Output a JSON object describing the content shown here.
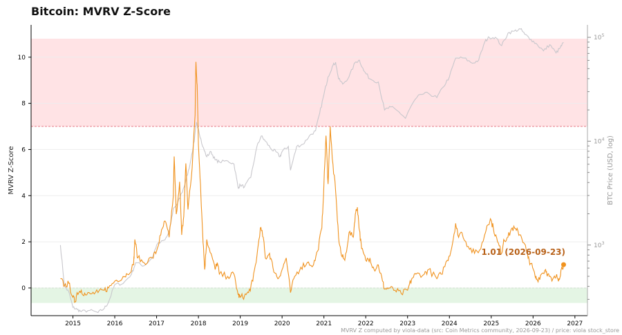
{
  "title": "Bitcoin: MVRV Z-Score",
  "footer": "MVRV Z computed by viola-data (src: Coin Metrics community, 2026-09-23) / price: viola stock_store",
  "colors": {
    "zscore": "#f0921e",
    "price": "#c8c7cc",
    "overheat_zone": "#ffe3e5",
    "overheat_line": "#e47a85",
    "undervalued_zone": "#e4f5e4",
    "zero_line": "#5cbf5c",
    "annotation": "#b8621a",
    "grid": "#eeeeee"
  },
  "chart_data": {
    "type": "line",
    "title": "Bitcoin: MVRV Z-Score",
    "ylabel": "MVRV Z-Score",
    "y2label": "BTC Price (USD, log)",
    "ylim": [
      -1.2,
      11.4
    ],
    "y2lim_log10": [
      2.32,
      5.12
    ],
    "xlim": [
      2014.0,
      2027.3
    ],
    "x_ticks": [
      "2015",
      "2016",
      "2017",
      "2018",
      "2019",
      "2020",
      "2021",
      "2022",
      "2023",
      "2024",
      "2025",
      "2026",
      "2027"
    ],
    "x_tick_values": [
      2015,
      2016,
      2017,
      2018,
      2019,
      2020,
      2021,
      2022,
      2023,
      2024,
      2025,
      2026,
      2027
    ],
    "y_ticks": [
      0,
      2,
      4,
      6,
      8,
      10
    ],
    "y2_ticks": [
      {
        "label": "10",
        "sup": "3",
        "value": 1000
      },
      {
        "label": "10",
        "sup": "4",
        "value": 10000
      },
      {
        "label": "10",
        "sup": "5",
        "value": 100000
      }
    ],
    "grid": true,
    "bands": [
      {
        "name": "overheated",
        "from": 7,
        "to": 10.8
      },
      {
        "name": "undervalued",
        "from": -0.65,
        "to": 0
      }
    ],
    "thresholds": [
      7,
      0
    ],
    "annotation": {
      "text": "1.01  (2026-09-23)",
      "x": 2026.73,
      "y": 1.01
    },
    "series": [
      {
        "key": "zscore",
        "axis": "left",
        "points": [
          [
            2014.7,
            0.4
          ],
          [
            2014.8,
            0.1
          ],
          [
            2014.9,
            0.2
          ],
          [
            2015.0,
            -0.4
          ],
          [
            2015.05,
            -0.6
          ],
          [
            2015.1,
            -0.2
          ],
          [
            2015.2,
            -0.1
          ],
          [
            2015.3,
            -0.3
          ],
          [
            2015.45,
            -0.25
          ],
          [
            2015.6,
            -0.2
          ],
          [
            2015.75,
            -0.1
          ],
          [
            2015.85,
            0.0
          ],
          [
            2016.0,
            0.3
          ],
          [
            2016.2,
            0.5
          ],
          [
            2016.3,
            0.6
          ],
          [
            2016.45,
            1.0
          ],
          [
            2016.48,
            2.1
          ],
          [
            2016.55,
            1.3
          ],
          [
            2016.7,
            1.1
          ],
          [
            2016.9,
            1.3
          ],
          [
            2017.0,
            1.6
          ],
          [
            2017.1,
            2.3
          ],
          [
            2017.2,
            2.9
          ],
          [
            2017.3,
            2.2
          ],
          [
            2017.4,
            4.0
          ],
          [
            2017.42,
            5.7
          ],
          [
            2017.47,
            3.2
          ],
          [
            2017.55,
            4.6
          ],
          [
            2017.6,
            2.3
          ],
          [
            2017.65,
            3.1
          ],
          [
            2017.7,
            5.4
          ],
          [
            2017.75,
            3.4
          ],
          [
            2017.85,
            5.2
          ],
          [
            2017.92,
            7.5
          ],
          [
            2017.94,
            9.8
          ],
          [
            2017.97,
            8.8
          ],
          [
            2018.0,
            6.2
          ],
          [
            2018.05,
            4.5
          ],
          [
            2018.1,
            2.4
          ],
          [
            2018.15,
            0.8
          ],
          [
            2018.2,
            2.1
          ],
          [
            2018.3,
            1.5
          ],
          [
            2018.4,
            0.8
          ],
          [
            2018.45,
            1.1
          ],
          [
            2018.5,
            0.6
          ],
          [
            2018.7,
            0.5
          ],
          [
            2018.85,
            0.6
          ],
          [
            2018.95,
            -0.3
          ],
          [
            2019.0,
            -0.4
          ],
          [
            2019.1,
            -0.35
          ],
          [
            2019.2,
            -0.2
          ],
          [
            2019.3,
            0.3
          ],
          [
            2019.4,
            1.4
          ],
          [
            2019.48,
            2.6
          ],
          [
            2019.55,
            2.2
          ],
          [
            2019.6,
            1.3
          ],
          [
            2019.7,
            1.5
          ],
          [
            2019.78,
            0.9
          ],
          [
            2019.9,
            0.4
          ],
          [
            2020.0,
            0.8
          ],
          [
            2020.1,
            1.3
          ],
          [
            2020.2,
            -0.2
          ],
          [
            2020.3,
            0.5
          ],
          [
            2020.45,
            0.9
          ],
          [
            2020.6,
            1.1
          ],
          [
            2020.75,
            1.0
          ],
          [
            2020.85,
            1.6
          ],
          [
            2020.95,
            2.6
          ],
          [
            2021.0,
            4.5
          ],
          [
            2021.05,
            6.6
          ],
          [
            2021.1,
            4.5
          ],
          [
            2021.15,
            7.0
          ],
          [
            2021.2,
            5.6
          ],
          [
            2021.28,
            4.2
          ],
          [
            2021.35,
            2.2
          ],
          [
            2021.42,
            1.4
          ],
          [
            2021.5,
            1.2
          ],
          [
            2021.6,
            2.4
          ],
          [
            2021.7,
            2.2
          ],
          [
            2021.75,
            3.2
          ],
          [
            2021.8,
            3.5
          ],
          [
            2021.85,
            2.5
          ],
          [
            2021.9,
            1.7
          ],
          [
            2022.0,
            1.2
          ],
          [
            2022.1,
            1.3
          ],
          [
            2022.2,
            0.8
          ],
          [
            2022.3,
            1.0
          ],
          [
            2022.4,
            0.3
          ],
          [
            2022.45,
            -0.05
          ],
          [
            2022.55,
            0.0
          ],
          [
            2022.7,
            -0.1
          ],
          [
            2022.85,
            -0.25
          ],
          [
            2023.0,
            -0.1
          ],
          [
            2023.1,
            0.4
          ],
          [
            2023.2,
            0.6
          ],
          [
            2023.4,
            0.6
          ],
          [
            2023.5,
            0.8
          ],
          [
            2023.7,
            0.4
          ],
          [
            2023.8,
            0.6
          ],
          [
            2023.95,
            1.2
          ],
          [
            2024.05,
            1.7
          ],
          [
            2024.15,
            2.8
          ],
          [
            2024.2,
            2.3
          ],
          [
            2024.3,
            2.4
          ],
          [
            2024.45,
            1.8
          ],
          [
            2024.6,
            1.5
          ],
          [
            2024.75,
            1.7
          ],
          [
            2024.9,
            2.7
          ],
          [
            2024.98,
            3.0
          ],
          [
            2025.05,
            2.6
          ],
          [
            2025.15,
            2.0
          ],
          [
            2025.25,
            1.5
          ],
          [
            2025.3,
            2.1
          ],
          [
            2025.4,
            2.2
          ],
          [
            2025.5,
            2.6
          ],
          [
            2025.6,
            2.5
          ],
          [
            2025.7,
            2.3
          ],
          [
            2025.8,
            1.9
          ],
          [
            2025.88,
            1.3
          ],
          [
            2025.95,
            1.05
          ],
          [
            2026.05,
            0.5
          ],
          [
            2026.1,
            0.35
          ],
          [
            2026.2,
            0.6
          ],
          [
            2026.3,
            0.8
          ],
          [
            2026.35,
            0.6
          ],
          [
            2026.45,
            0.3
          ],
          [
            2026.55,
            0.5
          ],
          [
            2026.62,
            0.4
          ],
          [
            2026.68,
            0.85
          ],
          [
            2026.73,
            1.01
          ]
        ]
      },
      {
        "key": "price",
        "axis": "right",
        "points": [
          [
            2014.7,
            3.0
          ],
          [
            2014.8,
            2.6
          ],
          [
            2014.9,
            2.55
          ],
          [
            2015.0,
            2.4
          ],
          [
            2015.1,
            2.38
          ],
          [
            2015.2,
            2.36
          ],
          [
            2015.4,
            2.37
          ],
          [
            2015.6,
            2.35
          ],
          [
            2015.75,
            2.39
          ],
          [
            2015.85,
            2.45
          ],
          [
            2016.0,
            2.62
          ],
          [
            2016.2,
            2.63
          ],
          [
            2016.4,
            2.72
          ],
          [
            2016.5,
            2.83
          ],
          [
            2016.7,
            2.8
          ],
          [
            2016.9,
            2.88
          ],
          [
            2017.0,
            3.0
          ],
          [
            2017.2,
            3.05
          ],
          [
            2017.3,
            3.12
          ],
          [
            2017.4,
            3.35
          ],
          [
            2017.5,
            3.4
          ],
          [
            2017.6,
            3.5
          ],
          [
            2017.7,
            3.62
          ],
          [
            2017.8,
            3.78
          ],
          [
            2017.9,
            4.0
          ],
          [
            2017.95,
            4.18
          ],
          [
            2018.0,
            4.12
          ],
          [
            2018.1,
            3.95
          ],
          [
            2018.2,
            3.85
          ],
          [
            2018.3,
            3.9
          ],
          [
            2018.4,
            3.82
          ],
          [
            2018.5,
            3.8
          ],
          [
            2018.7,
            3.81
          ],
          [
            2018.85,
            3.78
          ],
          [
            2018.95,
            3.55
          ],
          [
            2019.0,
            3.58
          ],
          [
            2019.1,
            3.56
          ],
          [
            2019.25,
            3.65
          ],
          [
            2019.4,
            3.95
          ],
          [
            2019.5,
            4.05
          ],
          [
            2019.6,
            4.0
          ],
          [
            2019.75,
            3.92
          ],
          [
            2019.85,
            3.9
          ],
          [
            2019.95,
            3.85
          ],
          [
            2020.0,
            3.9
          ],
          [
            2020.15,
            3.95
          ],
          [
            2020.2,
            3.72
          ],
          [
            2020.35,
            3.95
          ],
          [
            2020.5,
            3.97
          ],
          [
            2020.65,
            4.05
          ],
          [
            2020.8,
            4.1
          ],
          [
            2020.9,
            4.27
          ],
          [
            2021.0,
            4.45
          ],
          [
            2021.1,
            4.62
          ],
          [
            2021.2,
            4.72
          ],
          [
            2021.28,
            4.76
          ],
          [
            2021.35,
            4.6
          ],
          [
            2021.45,
            4.55
          ],
          [
            2021.6,
            4.62
          ],
          [
            2021.75,
            4.76
          ],
          [
            2021.85,
            4.78
          ],
          [
            2021.95,
            4.68
          ],
          [
            2022.1,
            4.6
          ],
          [
            2022.3,
            4.57
          ],
          [
            2022.45,
            4.3
          ],
          [
            2022.6,
            4.33
          ],
          [
            2022.8,
            4.28
          ],
          [
            2022.95,
            4.22
          ],
          [
            2023.1,
            4.35
          ],
          [
            2023.3,
            4.45
          ],
          [
            2023.5,
            4.46
          ],
          [
            2023.7,
            4.42
          ],
          [
            2023.85,
            4.52
          ],
          [
            2024.0,
            4.62
          ],
          [
            2024.15,
            4.8
          ],
          [
            2024.35,
            4.8
          ],
          [
            2024.55,
            4.75
          ],
          [
            2024.7,
            4.78
          ],
          [
            2024.85,
            4.96
          ],
          [
            2024.95,
            5.0
          ],
          [
            2025.1,
            5.0
          ],
          [
            2025.25,
            4.92
          ],
          [
            2025.4,
            5.04
          ],
          [
            2025.55,
            5.06
          ],
          [
            2025.7,
            5.08
          ],
          [
            2025.8,
            5.03
          ],
          [
            2025.95,
            4.98
          ],
          [
            2026.1,
            4.93
          ],
          [
            2026.25,
            4.87
          ],
          [
            2026.4,
            4.93
          ],
          [
            2026.55,
            4.85
          ],
          [
            2026.65,
            4.9
          ],
          [
            2026.73,
            4.95
          ]
        ]
      }
    ]
  }
}
